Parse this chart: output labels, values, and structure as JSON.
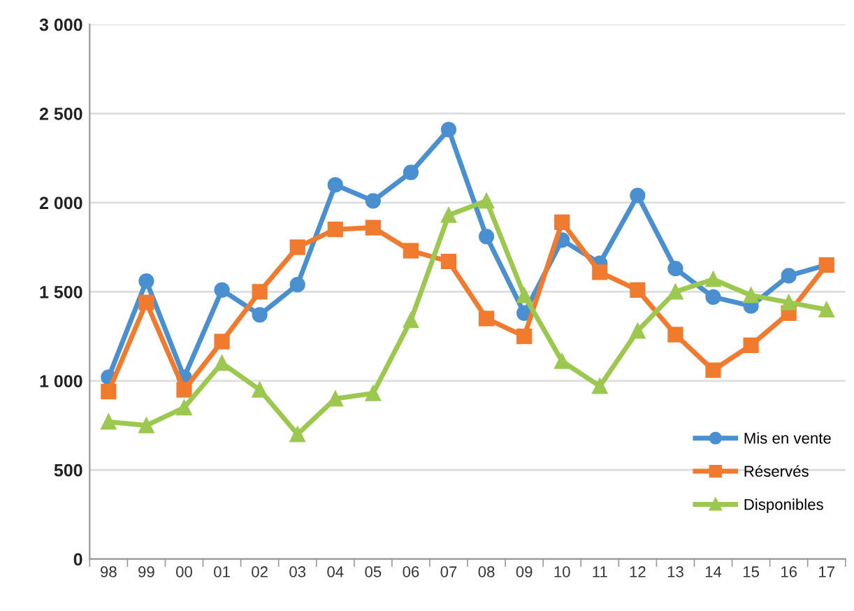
{
  "chart_data": {
    "type": "line",
    "categories": [
      "98",
      "99",
      "00",
      "01",
      "02",
      "03",
      "04",
      "05",
      "06",
      "07",
      "08",
      "09",
      "10",
      "11",
      "12",
      "13",
      "14",
      "15",
      "16",
      "17"
    ],
    "series": [
      {
        "name": "Mis en vente",
        "color": "#4a90d0",
        "marker": "circle",
        "values": [
          1020,
          1560,
          1020,
          1510,
          1370,
          1540,
          2100,
          2010,
          2170,
          2410,
          1810,
          1380,
          1790,
          1660,
          2040,
          1630,
          1470,
          1420,
          1590,
          1650
        ]
      },
      {
        "name": "Réservés",
        "color": "#f07a2e",
        "marker": "square",
        "values": [
          940,
          1440,
          950,
          1220,
          1500,
          1750,
          1850,
          1860,
          1730,
          1670,
          1350,
          1250,
          1890,
          1610,
          1510,
          1260,
          1060,
          1200,
          1380,
          1650
        ]
      },
      {
        "name": "Disponibles",
        "color": "#9cc850",
        "marker": "triangle",
        "values": [
          770,
          750,
          850,
          1100,
          950,
          700,
          900,
          930,
          1340,
          1930,
          2010,
          1480,
          1110,
          970,
          1280,
          1500,
          1570,
          1480,
          1440,
          1400
        ]
      }
    ],
    "ylim": [
      0,
      3000
    ],
    "yticks": [
      0,
      500,
      {
        "value": 1000,
        "label": "1 000"
      },
      {
        "value": 1500,
        "label": "1 500"
      },
      {
        "value": 2000,
        "label": "2 000"
      },
      {
        "value": 2500,
        "label": "2 500"
      },
      {
        "value": 3000,
        "label": "3 000"
      }
    ],
    "grid": "y",
    "legend": "bottom right",
    "line_style": "solid"
  }
}
